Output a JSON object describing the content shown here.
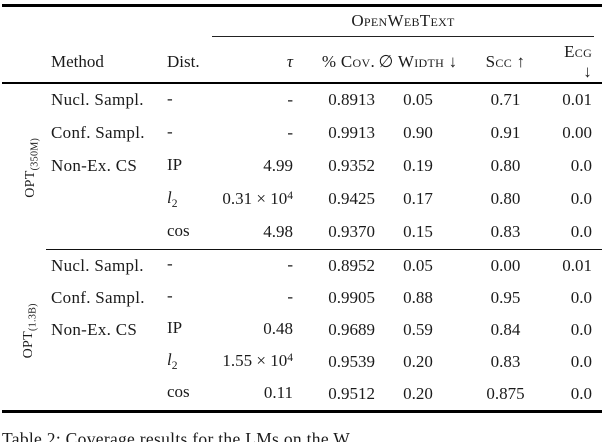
{
  "ink_color": "#1b1b1b",
  "table": {
    "dataset_header": "OpenWebText",
    "columns": {
      "method": "Method",
      "dist": "Dist.",
      "tau": "τ",
      "cov": "% Cov.",
      "width": "∅ Width ↓",
      "scc": "Scc ↑",
      "ecg": "Ecg ↓"
    },
    "groups": [
      {
        "label_base": "OPT",
        "label_sub": "(350M)",
        "rows": [
          {
            "method": "Nucl. Sampl.",
            "dist_base": "-",
            "dist_sub": "",
            "tau_base": "-",
            "tau_sup": "",
            "cov": "0.8913",
            "width": "0.05",
            "scc": "0.71",
            "ecg": "0.01"
          },
          {
            "method": "Conf. Sampl.",
            "dist_base": "-",
            "dist_sub": "",
            "tau_base": "-",
            "tau_sup": "",
            "cov": "0.9913",
            "width": "0.90",
            "scc": "0.91",
            "ecg": "0.00"
          },
          {
            "method": "Non-Ex. CS",
            "dist_base": "IP",
            "dist_sub": "",
            "tau_base": "4.99",
            "tau_sup": "",
            "cov": "0.9352",
            "width": "0.19",
            "scc": "0.80",
            "ecg": "0.0"
          },
          {
            "method": "",
            "dist_base": "l",
            "dist_sub": "2",
            "tau_base": "0.31 × 10",
            "tau_sup": "4",
            "cov": "0.9425",
            "width": "0.17",
            "scc": "0.80",
            "ecg": "0.0"
          },
          {
            "method": "",
            "dist_base": "cos",
            "dist_sub": "",
            "tau_base": "4.98",
            "tau_sup": "",
            "cov": "0.9370",
            "width": "0.15",
            "scc": "0.83",
            "ecg": "0.0"
          }
        ]
      },
      {
        "label_base": "OPT",
        "label_sub": "(1.3B)",
        "rows": [
          {
            "method": "Nucl. Sampl.",
            "dist_base": "-",
            "dist_sub": "",
            "tau_base": "-",
            "tau_sup": "",
            "cov": "0.8952",
            "width": "0.05",
            "scc": "0.00",
            "ecg": "0.01"
          },
          {
            "method": "Conf. Sampl.",
            "dist_base": "-",
            "dist_sub": "",
            "tau_base": "-",
            "tau_sup": "",
            "cov": "0.9905",
            "width": "0.88",
            "scc": "0.95",
            "ecg": "0.0"
          },
          {
            "method": "Non-Ex. CS",
            "dist_base": "IP",
            "dist_sub": "",
            "tau_base": "0.48",
            "tau_sup": "",
            "cov": "0.9689",
            "width": "0.59",
            "scc": "0.84",
            "ecg": "0.0"
          },
          {
            "method": "",
            "dist_base": "l",
            "dist_sub": "2",
            "tau_base": "1.55 × 10",
            "tau_sup": "4",
            "cov": "0.9539",
            "width": "0.20",
            "scc": "0.83",
            "ecg": "0.0"
          },
          {
            "method": "",
            "dist_base": "cos",
            "dist_sub": "",
            "tau_base": "0.11",
            "tau_sup": "",
            "cov": "0.9512",
            "width": "0.20",
            "scc": "0.875",
            "ecg": "0.0"
          }
        ]
      }
    ]
  },
  "caption": "Table 2: Coverage results for the LMs on the W"
}
